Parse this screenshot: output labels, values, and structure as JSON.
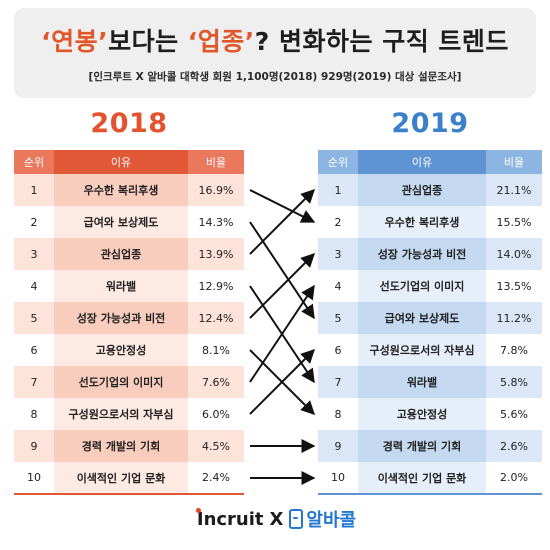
{
  "header": {
    "title_q1": "‘연봉’",
    "title_mid": "보다는 ",
    "title_q2": "‘업종’",
    "title_end": "? 변화하는 구직 트렌드",
    "subtitle": "[인크루트 X 알바콜 대학생 회원 1,100명(2018) 929명(2019) 대상 설문조사]"
  },
  "table_2018": {
    "year": "2018",
    "headers": [
      "순위",
      "이유",
      "비율"
    ],
    "rows": [
      {
        "rank": "1",
        "reason": "우수한 복리후생",
        "pct": "16.9%"
      },
      {
        "rank": "2",
        "reason": "급여와 보상제도",
        "pct": "14.3%"
      },
      {
        "rank": "3",
        "reason": "관심업종",
        "pct": "13.9%"
      },
      {
        "rank": "4",
        "reason": "워라밸",
        "pct": "12.9%"
      },
      {
        "rank": "5",
        "reason": "성장 가능성과 비전",
        "pct": "12.4%"
      },
      {
        "rank": "6",
        "reason": "고용안정성",
        "pct": "8.1%"
      },
      {
        "rank": "7",
        "reason": "선도기업의 이미지",
        "pct": "7.6%"
      },
      {
        "rank": "8",
        "reason": "구성원으로서의 자부심",
        "pct": "6.0%"
      },
      {
        "rank": "9",
        "reason": "경력 개발의 기회",
        "pct": "4.5%"
      },
      {
        "rank": "10",
        "reason": "이색적인 기업 문화",
        "pct": "2.4%"
      }
    ]
  },
  "table_2019": {
    "year": "2019",
    "headers": [
      "순위",
      "이유",
      "비율"
    ],
    "rows": [
      {
        "rank": "1",
        "reason": "관심업종",
        "pct": "21.1%"
      },
      {
        "rank": "2",
        "reason": "우수한 복리후생",
        "pct": "15.5%"
      },
      {
        "rank": "3",
        "reason": "성장 가능성과 비전",
        "pct": "14.0%"
      },
      {
        "rank": "4",
        "reason": "선도기업의 이미지",
        "pct": "13.5%"
      },
      {
        "rank": "5",
        "reason": "급여와 보상제도",
        "pct": "11.2%"
      },
      {
        "rank": "6",
        "reason": "구성원으로서의 자부심",
        "pct": "7.8%"
      },
      {
        "rank": "7",
        "reason": "워라밸",
        "pct": "5.8%"
      },
      {
        "rank": "8",
        "reason": "고용안정성",
        "pct": "5.6%"
      },
      {
        "rank": "9",
        "reason": "경력 개발의 기회",
        "pct": "2.6%"
      },
      {
        "rank": "10",
        "reason": "이색적인 기업 문화",
        "pct": "2.0%"
      }
    ]
  },
  "rank_changes": [
    {
      "from_2018": 1,
      "to_2019": 2
    },
    {
      "from_2018": 2,
      "to_2019": 5
    },
    {
      "from_2018": 3,
      "to_2019": 1
    },
    {
      "from_2018": 4,
      "to_2019": 7
    },
    {
      "from_2018": 5,
      "to_2019": 3
    },
    {
      "from_2018": 6,
      "to_2019": 8
    },
    {
      "from_2018": 7,
      "to_2019": 4
    },
    {
      "from_2018": 8,
      "to_2019": 6
    },
    {
      "from_2018": 9,
      "to_2019": 9
    },
    {
      "from_2018": 10,
      "to_2019": 10
    }
  ],
  "footer": {
    "incruit": "Incruit",
    "x": "X",
    "albacall": "알바콜"
  },
  "colors": {
    "accent_2018": "#e3532f",
    "accent_2019": "#3b80c8"
  }
}
